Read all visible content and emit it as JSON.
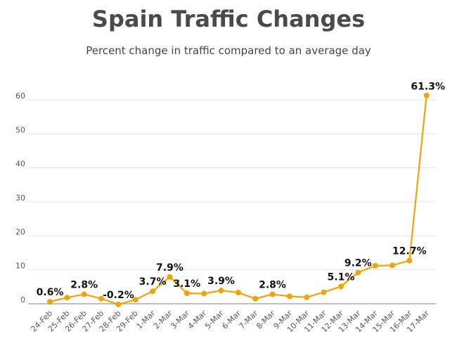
{
  "chart_data": {
    "type": "line",
    "title": "Spain Traffic Changes",
    "subtitle": "Percent change in traffic compared to an average day",
    "xlabel": "",
    "ylabel": "",
    "categories": [
      "24-Feb",
      "25-Feb",
      "26-Feb",
      "27-Feb",
      "28-Feb",
      "29-Feb",
      "1-Mar",
      "2-Mar",
      "3-Mar",
      "4-Mar",
      "5-Mar",
      "6-Mar",
      "7-Mar",
      "8-Mar",
      "9-Mar",
      "10-Mar",
      "11-Mar",
      "12-Mar",
      "13-Mar",
      "14-Mar",
      "15-Mar",
      "16-Mar",
      "17-Mar"
    ],
    "series": [
      {
        "values": [
          0.6,
          1.8,
          2.8,
          1.5,
          -0.2,
          1.2,
          3.7,
          7.9,
          3.1,
          3.0,
          3.9,
          3.3,
          1.5,
          2.8,
          2.2,
          1.9,
          3.4,
          5.1,
          9.2,
          11.2,
          11.3,
          12.7,
          61.3
        ],
        "data_labels": [
          "0.6%",
          "",
          "2.8%",
          "",
          "-0.2%",
          "",
          "3.7%",
          "7.9%",
          "3.1%",
          "",
          "3.9%",
          "",
          "",
          "2.8%",
          "",
          "",
          "",
          "5.1%",
          "9.2%",
          "",
          "",
          "12.7%",
          "61.3%"
        ]
      }
    ],
    "yticks": [
      0,
      10,
      20,
      30,
      40,
      50,
      60
    ],
    "ylim": [
      0,
      65
    ],
    "grid": true,
    "line_color": "#f0a30a"
  }
}
